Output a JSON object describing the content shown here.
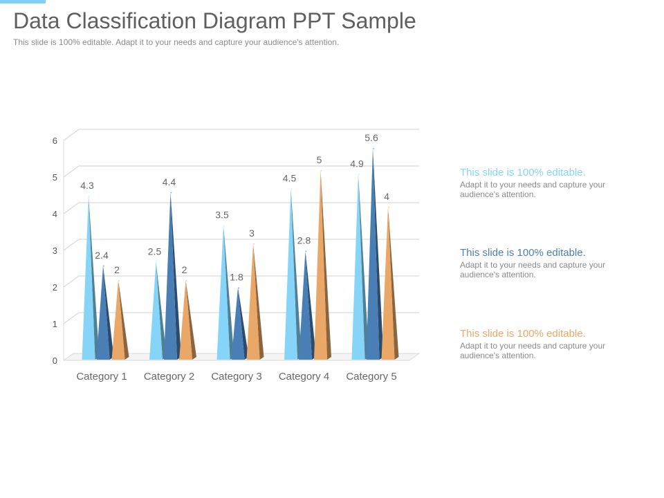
{
  "slide": {
    "title": "Data Classification Diagram PPT Sample",
    "subtitle": "This slide is 100% editable. Adapt it to your needs and capture your audience's attention.",
    "accent_color": "#7fd0f7"
  },
  "side_items": [
    {
      "heading": "This slide is 100% editable.",
      "text": "Adapt it to your needs and capture your audience's attention.",
      "color": "#86d5f8"
    },
    {
      "heading": "This slide is 100% editable.",
      "text": "Adapt it to your needs and capture your audience's attention.",
      "color": "#4a7fb5"
    },
    {
      "heading": "This slide is 100% editable.",
      "text": "Adapt it to your needs and capture your audience's attention.",
      "color": "#eaa868"
    }
  ],
  "chart_data": {
    "type": "bar",
    "categories": [
      "Category 1",
      "Category 2",
      "Category 3",
      "Category 4",
      "Category 5"
    ],
    "series": [
      {
        "values": [
          4.3,
          2.5,
          3.5,
          4.5,
          4.9
        ],
        "color": "#86d5f8"
      },
      {
        "values": [
          2.4,
          4.4,
          1.8,
          2.8,
          5.6
        ],
        "color": "#4a7fb5"
      },
      {
        "values": [
          2,
          2,
          3,
          5,
          4
        ],
        "color": "#eaa868"
      }
    ],
    "ylim": [
      0,
      6
    ],
    "yticks": [
      0,
      1,
      2,
      3,
      4,
      5,
      6
    ],
    "grid": true,
    "legend": "none"
  }
}
